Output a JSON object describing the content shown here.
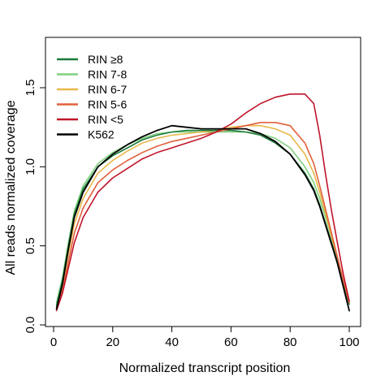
{
  "chart_data": {
    "type": "line",
    "title": "",
    "xlabel": "Normalized transcript position",
    "ylabel": "All reads normalized coverage",
    "xlim": [
      0,
      100
    ],
    "ylim": [
      0,
      1.5
    ],
    "x_ticks": [
      0,
      20,
      40,
      60,
      80,
      100
    ],
    "y_ticks": [
      0.0,
      0.5,
      1.0,
      1.5
    ],
    "y_tick_labels": [
      "0.0",
      "0.5",
      "1.0",
      "1.5"
    ],
    "grid": false,
    "legend_position": "top-left",
    "x": [
      1,
      3,
      5,
      7,
      10,
      15,
      20,
      25,
      30,
      35,
      40,
      45,
      50,
      55,
      60,
      65,
      70,
      75,
      80,
      85,
      88,
      90,
      92,
      94,
      96,
      98,
      100
    ],
    "series": [
      {
        "name": "RIN ≥8",
        "color": "#1b7a3a",
        "values": [
          0.12,
          0.28,
          0.5,
          0.7,
          0.86,
          1.0,
          1.07,
          1.12,
          1.17,
          1.2,
          1.22,
          1.23,
          1.23,
          1.23,
          1.23,
          1.22,
          1.2,
          1.15,
          1.08,
          0.96,
          0.86,
          0.76,
          0.64,
          0.52,
          0.4,
          0.25,
          0.13
        ]
      },
      {
        "name": "RIN 7-8",
        "color": "#7fd07f",
        "values": [
          0.14,
          0.3,
          0.52,
          0.72,
          0.88,
          1.02,
          1.09,
          1.14,
          1.18,
          1.21,
          1.22,
          1.22,
          1.22,
          1.22,
          1.22,
          1.22,
          1.21,
          1.18,
          1.12,
          1.0,
          0.9,
          0.8,
          0.68,
          0.55,
          0.42,
          0.27,
          0.15
        ]
      },
      {
        "name": "RIN 6-7",
        "color": "#e8b84a",
        "values": [
          0.11,
          0.25,
          0.45,
          0.64,
          0.8,
          0.96,
          1.04,
          1.1,
          1.15,
          1.18,
          1.2,
          1.21,
          1.22,
          1.23,
          1.25,
          1.26,
          1.26,
          1.24,
          1.2,
          1.08,
          0.96,
          0.84,
          0.7,
          0.56,
          0.42,
          0.27,
          0.14
        ]
      },
      {
        "name": "RIN 5-6",
        "color": "#e0603a",
        "values": [
          0.1,
          0.22,
          0.4,
          0.58,
          0.74,
          0.9,
          0.98,
          1.04,
          1.09,
          1.13,
          1.16,
          1.18,
          1.2,
          1.22,
          1.24,
          1.26,
          1.28,
          1.28,
          1.26,
          1.15,
          1.02,
          0.88,
          0.73,
          0.58,
          0.43,
          0.28,
          0.14
        ]
      },
      {
        "name": "RIN <5",
        "color": "#c0142a",
        "values": [
          0.09,
          0.2,
          0.36,
          0.52,
          0.68,
          0.84,
          0.93,
          0.99,
          1.05,
          1.09,
          1.12,
          1.15,
          1.18,
          1.22,
          1.27,
          1.34,
          1.4,
          1.44,
          1.46,
          1.46,
          1.4,
          1.2,
          0.95,
          0.72,
          0.52,
          0.32,
          0.15
        ]
      },
      {
        "name": "K562",
        "color": "#000000",
        "values": [
          0.1,
          0.26,
          0.48,
          0.68,
          0.84,
          1.0,
          1.08,
          1.14,
          1.19,
          1.23,
          1.26,
          1.25,
          1.24,
          1.24,
          1.24,
          1.24,
          1.21,
          1.16,
          1.08,
          0.95,
          0.85,
          0.75,
          0.63,
          0.51,
          0.39,
          0.24,
          0.09
        ]
      }
    ]
  }
}
